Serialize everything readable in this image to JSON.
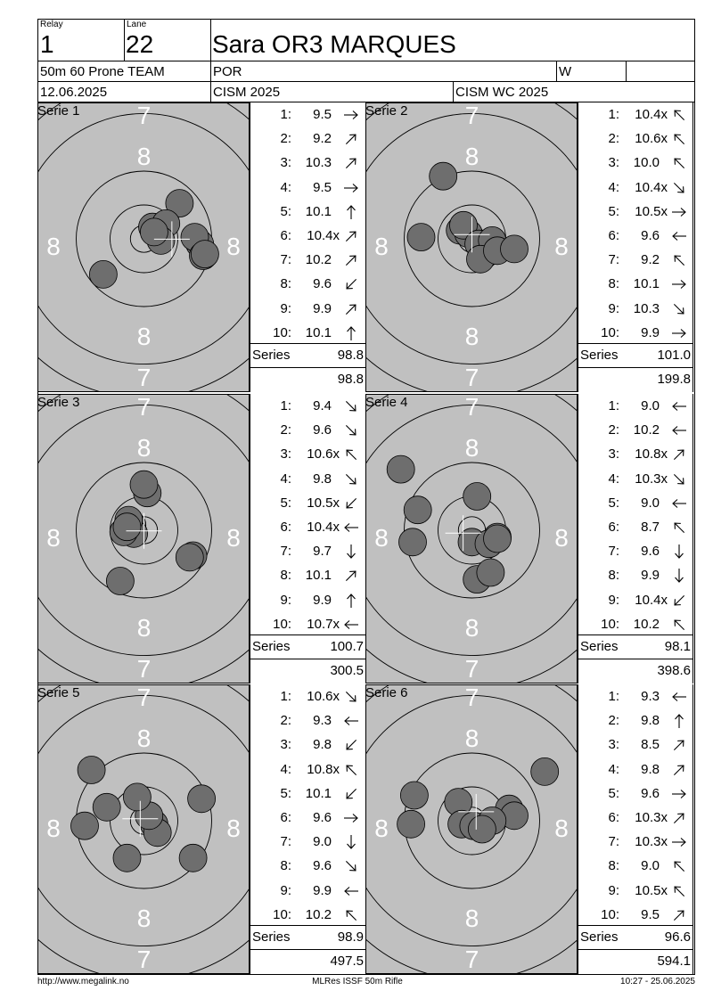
{
  "header": {
    "relay_label": "Relay",
    "relay_value": "1",
    "lane_label": "Lane",
    "lane_value": "22",
    "athlete_name": "Sara OR3 MARQUES",
    "event": "50m 60 Prone TEAM",
    "nation": "POR",
    "gender": "W",
    "date": "12.06.2025",
    "competition": "CISM 2025",
    "championship": "CISM WC 2025"
  },
  "series_total_label": "Series",
  "series": [
    {
      "label": "Serie 1",
      "target_rings": {
        "outer": "7",
        "inner": "8"
      },
      "shots": [
        {
          "n": "1:",
          "v": "9.5",
          "arrow": "right"
        },
        {
          "n": "2:",
          "v": "9.2",
          "arrow": "up-right"
        },
        {
          "n": "3:",
          "v": "10.3",
          "arrow": "up-right"
        },
        {
          "n": "4:",
          "v": "9.5",
          "arrow": "right"
        },
        {
          "n": "5:",
          "v": "10.1",
          "arrow": "up"
        },
        {
          "n": "6:",
          "v": "10.4x",
          "arrow": "up-right"
        },
        {
          "n": "7:",
          "v": "10.2",
          "arrow": "up-right"
        },
        {
          "n": "8:",
          "v": "9.6",
          "arrow": "down-left"
        },
        {
          "n": "9:",
          "v": "9.9",
          "arrow": "up-right"
        },
        {
          "n": "10:",
          "v": "10.1",
          "arrow": "up"
        }
      ],
      "series_score": "98.8",
      "cumulative": "98.8",
      "hits": [
        [
          1.05,
          -1.05
        ],
        [
          0.25,
          -0.35
        ],
        [
          0.65,
          -0.45
        ],
        [
          1.65,
          0.15
        ],
        [
          1.5,
          -0.05
        ],
        [
          0.5,
          0.05
        ],
        [
          0.3,
          -0.2
        ],
        [
          -1.2,
          1.05
        ],
        [
          1.75,
          0.5
        ],
        [
          1.8,
          0.45
        ]
      ]
    },
    {
      "label": "Serie 2",
      "target_rings": {
        "outer": "7",
        "inner": "8"
      },
      "shots": [
        {
          "n": "1:",
          "v": "10.4x",
          "arrow": "up-left"
        },
        {
          "n": "2:",
          "v": "10.6x",
          "arrow": "up-left"
        },
        {
          "n": "3:",
          "v": "10.0",
          "arrow": "up-left"
        },
        {
          "n": "4:",
          "v": "10.4x",
          "arrow": "down-right"
        },
        {
          "n": "5:",
          "v": "10.5x",
          "arrow": "right"
        },
        {
          "n": "6:",
          "v": "9.6",
          "arrow": "left"
        },
        {
          "n": "7:",
          "v": "9.2",
          "arrow": "up-left"
        },
        {
          "n": "8:",
          "v": "10.1",
          "arrow": "right"
        },
        {
          "n": "9:",
          "v": "10.3",
          "arrow": "down-right"
        },
        {
          "n": "10:",
          "v": "9.9",
          "arrow": "right"
        }
      ],
      "series_score": "101.0",
      "cumulative": "199.8",
      "hits": [
        [
          -0.35,
          -0.25
        ],
        [
          -0.1,
          -0.15
        ],
        [
          -0.25,
          -0.4
        ],
        [
          0.2,
          0.15
        ],
        [
          0.6,
          0.05
        ],
        [
          -1.5,
          -0.05
        ],
        [
          -0.85,
          -1.85
        ],
        [
          0.25,
          0.6
        ],
        [
          0.75,
          0.35
        ],
        [
          1.25,
          0.3
        ]
      ]
    },
    {
      "label": "Serie 3",
      "target_rings": {
        "outer": "7",
        "inner": "8"
      },
      "shots": [
        {
          "n": "1:",
          "v": "9.4",
          "arrow": "down-right"
        },
        {
          "n": "2:",
          "v": "9.6",
          "arrow": "down-right"
        },
        {
          "n": "3:",
          "v": "10.6x",
          "arrow": "up-left"
        },
        {
          "n": "4:",
          "v": "9.8",
          "arrow": "down-right"
        },
        {
          "n": "5:",
          "v": "10.5x",
          "arrow": "down-left"
        },
        {
          "n": "6:",
          "v": "10.4x",
          "arrow": "left"
        },
        {
          "n": "7:",
          "v": "9.7",
          "arrow": "down"
        },
        {
          "n": "8:",
          "v": "10.1",
          "arrow": "up-right"
        },
        {
          "n": "9:",
          "v": "9.9",
          "arrow": "up"
        },
        {
          "n": "10:",
          "v": "10.7x",
          "arrow": "left"
        }
      ],
      "series_score": "100.7",
      "cumulative": "300.5",
      "hits": [
        [
          1.45,
          0.75
        ],
        [
          1.35,
          0.8
        ],
        [
          -0.35,
          -0.15
        ],
        [
          0.1,
          -1.1
        ],
        [
          -0.3,
          0.1
        ],
        [
          -0.6,
          0.05
        ],
        [
          -0.45,
          -0.3
        ],
        [
          0.0,
          -1.35
        ],
        [
          -0.7,
          1.5
        ],
        [
          -0.5,
          -0.1
        ]
      ]
    },
    {
      "label": "Serie 4",
      "target_rings": {
        "outer": "7",
        "inner": "8"
      },
      "shots": [
        {
          "n": "1:",
          "v": "9.0",
          "arrow": "left"
        },
        {
          "n": "2:",
          "v": "10.2",
          "arrow": "left"
        },
        {
          "n": "3:",
          "v": "10.8x",
          "arrow": "up-right"
        },
        {
          "n": "4:",
          "v": "10.3x",
          "arrow": "down-right"
        },
        {
          "n": "5:",
          "v": "9.0",
          "arrow": "left"
        },
        {
          "n": "6:",
          "v": "8.7",
          "arrow": "up-left"
        },
        {
          "n": "7:",
          "v": "9.6",
          "arrow": "down"
        },
        {
          "n": "8:",
          "v": "9.9",
          "arrow": "down"
        },
        {
          "n": "9:",
          "v": "10.4x",
          "arrow": "down-left"
        },
        {
          "n": "10:",
          "v": "10.2",
          "arrow": "up-left"
        }
      ],
      "series_score": "98.1",
      "cumulative": "398.6",
      "hits": [
        [
          -1.6,
          -0.6
        ],
        [
          0.0,
          0.35
        ],
        [
          0.75,
          0.2
        ],
        [
          0.5,
          0.4
        ],
        [
          -1.75,
          0.35
        ],
        [
          -2.1,
          -1.8
        ],
        [
          0.15,
          1.45
        ],
        [
          0.55,
          1.25
        ],
        [
          0.15,
          -1.0
        ],
        [
          0.75,
          0.25
        ]
      ]
    },
    {
      "label": "Serie 5",
      "target_rings": {
        "outer": "7",
        "inner": "8"
      },
      "shots": [
        {
          "n": "1:",
          "v": "10.6x",
          "arrow": "down-right"
        },
        {
          "n": "2:",
          "v": "9.3",
          "arrow": "left"
        },
        {
          "n": "3:",
          "v": "9.8",
          "arrow": "down-left"
        },
        {
          "n": "4:",
          "v": "10.8x",
          "arrow": "up-left"
        },
        {
          "n": "5:",
          "v": "10.1",
          "arrow": "down-left"
        },
        {
          "n": "6:",
          "v": "9.6",
          "arrow": "right"
        },
        {
          "n": "7:",
          "v": "9.0",
          "arrow": "down"
        },
        {
          "n": "8:",
          "v": "9.6",
          "arrow": "down-right"
        },
        {
          "n": "9:",
          "v": "9.9",
          "arrow": "left"
        },
        {
          "n": "10:",
          "v": "10.2",
          "arrow": "up-left"
        }
      ],
      "series_score": "98.9",
      "cumulative": "497.5",
      "hits": [
        [
          0.3,
          0.1
        ],
        [
          -1.1,
          -0.4
        ],
        [
          0.4,
          0.35
        ],
        [
          0.15,
          -0.15
        ],
        [
          -0.2,
          -0.7
        ],
        [
          1.7,
          -0.65
        ],
        [
          -0.5,
          1.1
        ],
        [
          1.45,
          1.1
        ],
        [
          -1.75,
          0.15
        ],
        [
          -1.55,
          -1.5
        ]
      ]
    },
    {
      "label": "Serie 6",
      "target_rings": {
        "outer": "7",
        "inner": "8"
      },
      "shots": [
        {
          "n": "1:",
          "v": "9.3",
          "arrow": "left"
        },
        {
          "n": "2:",
          "v": "9.8",
          "arrow": "up"
        },
        {
          "n": "3:",
          "v": "8.5",
          "arrow": "up-right"
        },
        {
          "n": "4:",
          "v": "9.8",
          "arrow": "up-right"
        },
        {
          "n": "5:",
          "v": "9.6",
          "arrow": "right"
        },
        {
          "n": "6:",
          "v": "10.3x",
          "arrow": "up-right"
        },
        {
          "n": "7:",
          "v": "10.3x",
          "arrow": "right"
        },
        {
          "n": "8:",
          "v": "9.0",
          "arrow": "up-left"
        },
        {
          "n": "9:",
          "v": "10.5x",
          "arrow": "up-left"
        },
        {
          "n": "10:",
          "v": "9.5",
          "arrow": "up-right"
        }
      ],
      "series_score": "96.6",
      "cumulative": "594.1",
      "hits": [
        [
          -1.7,
          -0.75
        ],
        [
          -0.4,
          -0.55
        ],
        [
          2.15,
          -1.45
        ],
        [
          1.1,
          -0.35
        ],
        [
          1.25,
          -0.15
        ],
        [
          -0.3,
          0.1
        ],
        [
          0.05,
          0.15
        ],
        [
          -1.8,
          0.1
        ],
        [
          0.6,
          0.0
        ],
        [
          0.3,
          0.25
        ]
      ]
    }
  ],
  "footer": {
    "website": "http://www.megalink.no",
    "software": "MLRes ISSF 50m Rifle",
    "timestamp": "10:27 - 25.06.2025"
  }
}
